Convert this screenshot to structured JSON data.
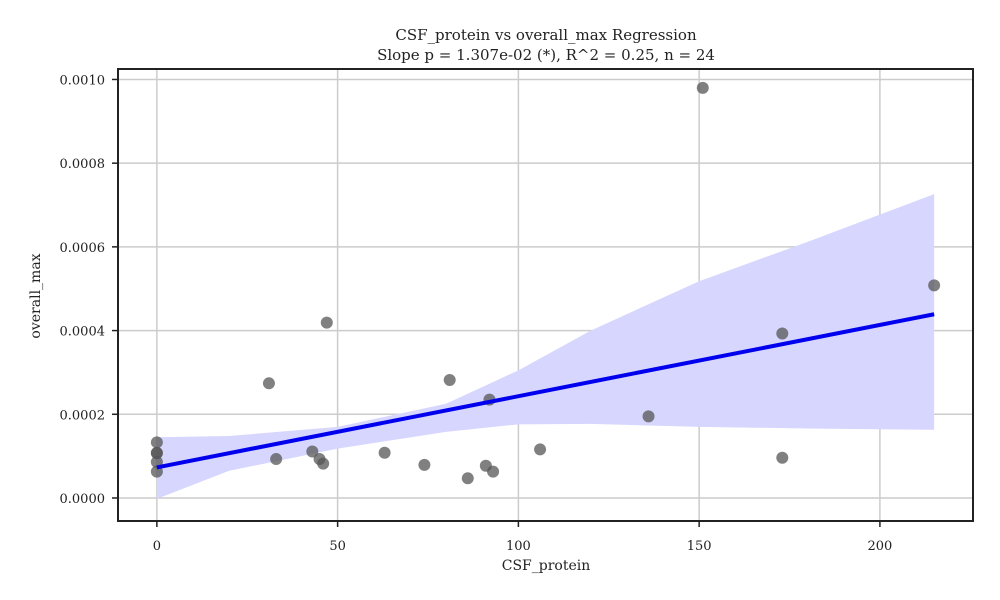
{
  "chart_data": {
    "type": "scatter",
    "title": "CSF_protein vs overall_max Regression",
    "subtitle": "Slope p = 1.307e-02 (*), R^2 = 0.25, n = 24",
    "xlabel": "CSF_protein",
    "ylabel": "overall_max",
    "xlim": [
      -10.75,
      225.75
    ],
    "ylim": [
      -5.5e-05,
      0.001025
    ],
    "x_ticks": [
      0,
      50,
      100,
      150,
      200
    ],
    "x_tick_labels": [
      "0",
      "50",
      "100",
      "150",
      "200"
    ],
    "y_ticks": [
      0.0,
      0.0002,
      0.0004,
      0.0006,
      0.0008,
      0.001
    ],
    "y_tick_labels": [
      "0.0000",
      "0.0002",
      "0.0004",
      "0.0006",
      "0.0008",
      "0.0010"
    ],
    "grid": true,
    "series": [
      {
        "name": "observations",
        "color": "#555555",
        "points": [
          {
            "x": 0,
            "y": 0.000133
          },
          {
            "x": 0,
            "y": 0.000108
          },
          {
            "x": 0,
            "y": 0.000107
          },
          {
            "x": 0,
            "y": 8.6e-05
          },
          {
            "x": 0,
            "y": 6.3e-05
          },
          {
            "x": 31,
            "y": 0.000274
          },
          {
            "x": 33,
            "y": 9.3e-05
          },
          {
            "x": 43,
            "y": 0.000111
          },
          {
            "x": 45,
            "y": 9.3e-05
          },
          {
            "x": 46,
            "y": 8.2e-05
          },
          {
            "x": 47,
            "y": 0.000419
          },
          {
            "x": 63,
            "y": 0.000108
          },
          {
            "x": 74,
            "y": 7.9e-05
          },
          {
            "x": 81,
            "y": 0.000282
          },
          {
            "x": 86,
            "y": 4.7e-05
          },
          {
            "x": 91,
            "y": 7.7e-05
          },
          {
            "x": 92,
            "y": 0.000235
          },
          {
            "x": 93,
            "y": 6.3e-05
          },
          {
            "x": 106,
            "y": 0.000116
          },
          {
            "x": 136,
            "y": 0.000195
          },
          {
            "x": 151,
            "y": 0.00098
          },
          {
            "x": 173,
            "y": 0.000393
          },
          {
            "x": 173,
            "y": 9.6e-05
          },
          {
            "x": 215,
            "y": 0.000508
          }
        ]
      }
    ],
    "regression": {
      "name": "fit",
      "color": "#0000ee",
      "x": [
        0,
        215
      ],
      "y": [
        7.3e-05,
        0.000439
      ]
    },
    "confidence_band": {
      "color": "#d6d6ff",
      "x": [
        0,
        20,
        50,
        80,
        100,
        120,
        150,
        180,
        215
      ],
      "lower": [
        -2e-06,
        6.5e-05,
        0.000118,
        0.000158,
        0.000176,
        0.000177,
        0.00017,
        0.000166,
        0.000163
      ],
      "upper": [
        0.000145,
        0.000148,
        0.00017,
        0.000225,
        0.000305,
        0.0004,
        0.000518,
        0.000612,
        0.000726
      ]
    }
  }
}
